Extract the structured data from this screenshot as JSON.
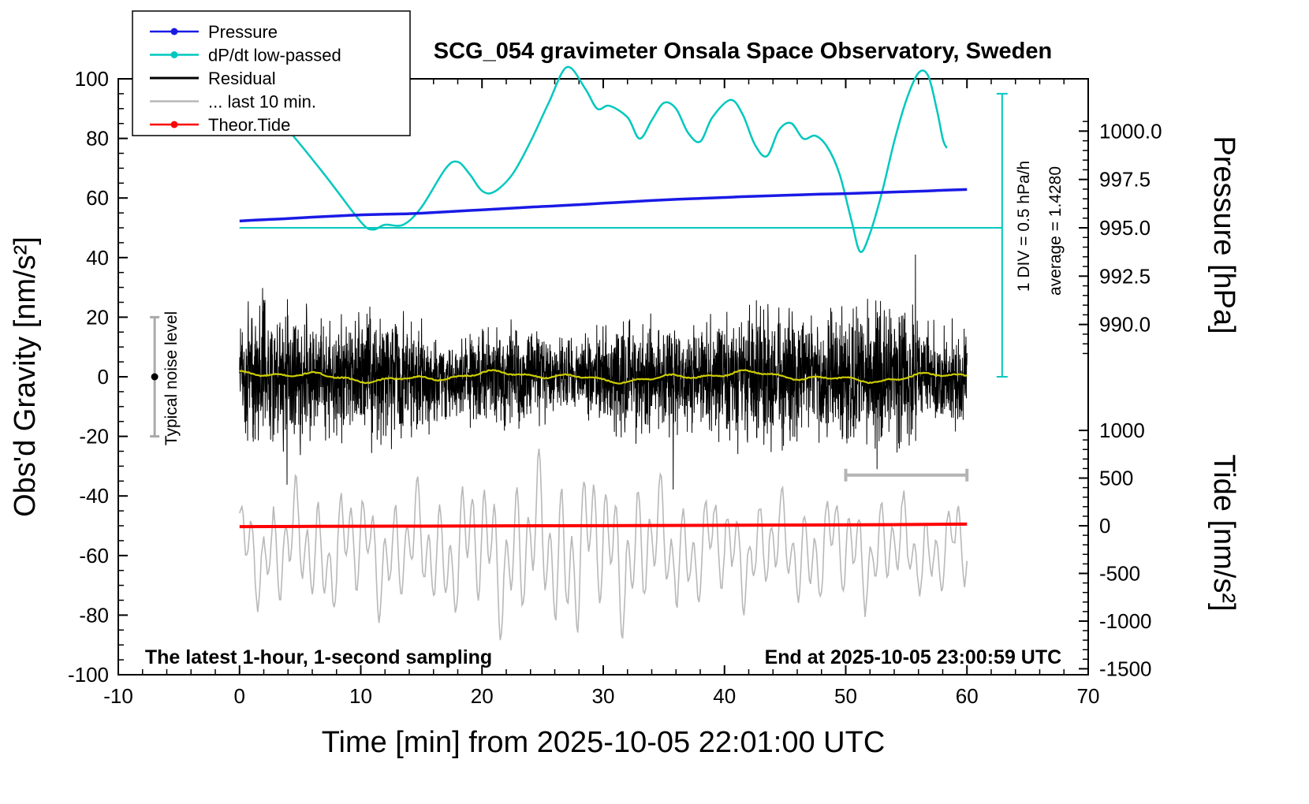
{
  "page": {
    "background": "#ffffff"
  },
  "chart_data": {
    "type": "line",
    "title": "SCG_054 gravimeter Onsala Space Observatory, Sweden",
    "xlabel": "Time [min] from 2025-10-05 22:01:00 UTC",
    "x_range": [
      -10,
      70
    ],
    "x_ticks": {
      "values": [
        -10,
        0,
        10,
        20,
        30,
        40,
        50,
        60,
        70
      ],
      "labels": [
        "-10",
        "0",
        "10",
        "20",
        "30",
        "40",
        "50",
        "60",
        "70"
      ],
      "minor_step": 2
    },
    "y_left": {
      "label": "Obs'd Gravity [nm/s²]",
      "range": [
        -100,
        100
      ],
      "tick_values": [
        -100,
        -80,
        -60,
        -40,
        -20,
        0,
        20,
        40,
        60,
        80,
        100
      ],
      "tick_labels": [
        "-100",
        "-80",
        "-60",
        "-40",
        "-20",
        "0",
        "20",
        "40",
        "60",
        "80",
        "100"
      ],
      "minor_step": 5
    },
    "y_right_pressure": {
      "label": "Pressure [hPa]",
      "tick_values": [
        1000.0,
        997.5,
        995.0,
        992.5,
        990.0
      ],
      "tick_labels": [
        "1000.0",
        "997.5",
        "995.0",
        "992.5",
        "990.0"
      ],
      "minor_step": 0.5,
      "ref_hpa": 995.0,
      "g_ref": 50,
      "g_per_hpa": 6.49
    },
    "y_right_tide": {
      "label": "Tide [nm/s²]",
      "tick_values": [
        1000,
        500,
        0,
        -500,
        -1000,
        -1500
      ],
      "tick_labels": [
        "1000",
        "500",
        "0",
        "-500",
        "-1000",
        "-1500"
      ],
      "minor_step": 100,
      "g_ref": -50,
      "g_per_unit": 0.032
    },
    "legend": {
      "items": [
        {
          "label": "Pressure",
          "color": "#1a1ae6",
          "marker": true
        },
        {
          "label": "dP/dt low-passed",
          "color": "#00c8be",
          "marker": true
        },
        {
          "label": "Residual",
          "color": "#000000",
          "marker": false
        },
        {
          "label": "... last 10 min.",
          "color": "#b8b8b8",
          "marker": false
        },
        {
          "label": "Theor.Tide",
          "color": "#ff0000",
          "marker": true
        }
      ]
    },
    "series": {
      "pressure": {
        "name": "Pressure",
        "unit": "hPa",
        "color": "#1a1ae6",
        "points_min_hpa": [
          [
            0,
            995.35
          ],
          [
            2,
            995.42
          ],
          [
            4,
            995.48
          ],
          [
            6,
            995.55
          ],
          [
            8,
            995.61
          ],
          [
            10,
            995.67
          ],
          [
            12,
            995.7
          ],
          [
            14,
            995.73
          ],
          [
            16,
            995.79
          ],
          [
            18,
            995.86
          ],
          [
            20,
            995.93
          ],
          [
            22,
            996.0
          ],
          [
            24,
            996.07
          ],
          [
            26,
            996.13
          ],
          [
            28,
            996.2
          ],
          [
            30,
            996.27
          ],
          [
            32,
            996.34
          ],
          [
            34,
            996.41
          ],
          [
            36,
            996.47
          ],
          [
            38,
            996.52
          ],
          [
            40,
            996.57
          ],
          [
            42,
            996.62
          ],
          [
            44,
            996.66
          ],
          [
            46,
            996.7
          ],
          [
            48,
            996.74
          ],
          [
            50,
            996.77
          ],
          [
            52,
            996.81
          ],
          [
            54,
            996.85
          ],
          [
            56,
            996.89
          ],
          [
            58,
            996.94
          ],
          [
            60,
            996.98
          ]
        ]
      },
      "dp_dt": {
        "name": "dP/dt low-passed",
        "unit": "hPa/h",
        "color": "#00c8be",
        "average": 1.428,
        "hpa_per_h_per_div": 0.5,
        "points_min_value": [
          [
            1.7,
            2.72
          ],
          [
            4,
            2.44
          ],
          [
            7,
            1.98
          ],
          [
            10,
            1.49
          ],
          [
            11,
            1.41
          ],
          [
            12,
            1.46
          ],
          [
            13.5,
            1.46
          ],
          [
            15,
            1.64
          ],
          [
            17,
            2.04
          ],
          [
            18,
            2.11
          ],
          [
            19,
            1.98
          ],
          [
            20,
            1.81
          ],
          [
            21,
            1.8
          ],
          [
            22.5,
            1.98
          ],
          [
            24,
            2.32
          ],
          [
            25.5,
            2.72
          ],
          [
            27,
            3.09
          ],
          [
            28.5,
            2.87
          ],
          [
            29.5,
            2.66
          ],
          [
            30.5,
            2.69
          ],
          [
            32,
            2.57
          ],
          [
            33,
            2.35
          ],
          [
            34,
            2.54
          ],
          [
            35,
            2.72
          ],
          [
            36,
            2.66
          ],
          [
            37,
            2.41
          ],
          [
            38,
            2.32
          ],
          [
            39,
            2.57
          ],
          [
            40.5,
            2.75
          ],
          [
            41.5,
            2.6
          ],
          [
            42.5,
            2.29
          ],
          [
            43.5,
            2.17
          ],
          [
            44.5,
            2.44
          ],
          [
            45.5,
            2.51
          ],
          [
            46.5,
            2.35
          ],
          [
            47.5,
            2.38
          ],
          [
            48.5,
            2.26
          ],
          [
            49.5,
            1.98
          ],
          [
            50.5,
            1.49
          ],
          [
            51.2,
            1.18
          ],
          [
            52,
            1.37
          ],
          [
            53,
            1.8
          ],
          [
            54,
            2.32
          ],
          [
            55,
            2.75
          ],
          [
            56,
            3.03
          ],
          [
            56.8,
            3.0
          ],
          [
            57.5,
            2.66
          ],
          [
            58,
            2.35
          ],
          [
            58.3,
            2.26
          ]
        ]
      },
      "residual": {
        "name": "Residual",
        "unit": "nm/s²",
        "color": "#000000",
        "sampling_seconds": 1,
        "duration_min": 60,
        "mean": 0,
        "sigma": 8.5,
        "spike_extreme": 40,
        "seed": 987654321
      },
      "residual_smoothed": {
        "name": "Residual low-passed",
        "color": "#cccc00",
        "amplitude": 2
      },
      "last_10_min": {
        "name": "... last 10 min.",
        "color": "#b8b8b8",
        "window_min": [
          50,
          60
        ],
        "center_gravity": -58,
        "peak_to_peak": 60,
        "seed": 2301
      },
      "theor_tide": {
        "name": "Theor.Tide",
        "unit": "nm/s² (tide axis)",
        "color": "#ff0000",
        "points_min_tide": [
          [
            0,
            -9
          ],
          [
            10,
            -5
          ],
          [
            20,
            -2
          ],
          [
            30,
            1
          ],
          [
            40,
            5
          ],
          [
            50,
            9
          ],
          [
            60,
            17
          ]
        ]
      }
    },
    "reference": {
      "average_line": {
        "gravity": 50,
        "x_from": 0,
        "x_to": 62.9,
        "color": "#00c8be"
      },
      "scale_bar": {
        "x": 62.9,
        "gravity_from": 0,
        "gravity_to": 95,
        "color": "#00c8be"
      },
      "noise_bar": {
        "x": -7,
        "gravity_from": -20,
        "gravity_to": 20,
        "dot_gravity": 0,
        "color": "#aaaaaa"
      },
      "last10_bar": {
        "x_from": 50,
        "x_to": 60,
        "gravity": -33,
        "color": "#b4b4b4"
      }
    },
    "annotations": {
      "div_scale": "1 DIV = 0.5 hPa/h",
      "average": "average = 1.4280",
      "noise_label": "Typical noise level",
      "sampling": "The latest 1-hour, 1-second sampling",
      "end_time": "End at 2025-10-05 23:00:59 UTC"
    }
  }
}
